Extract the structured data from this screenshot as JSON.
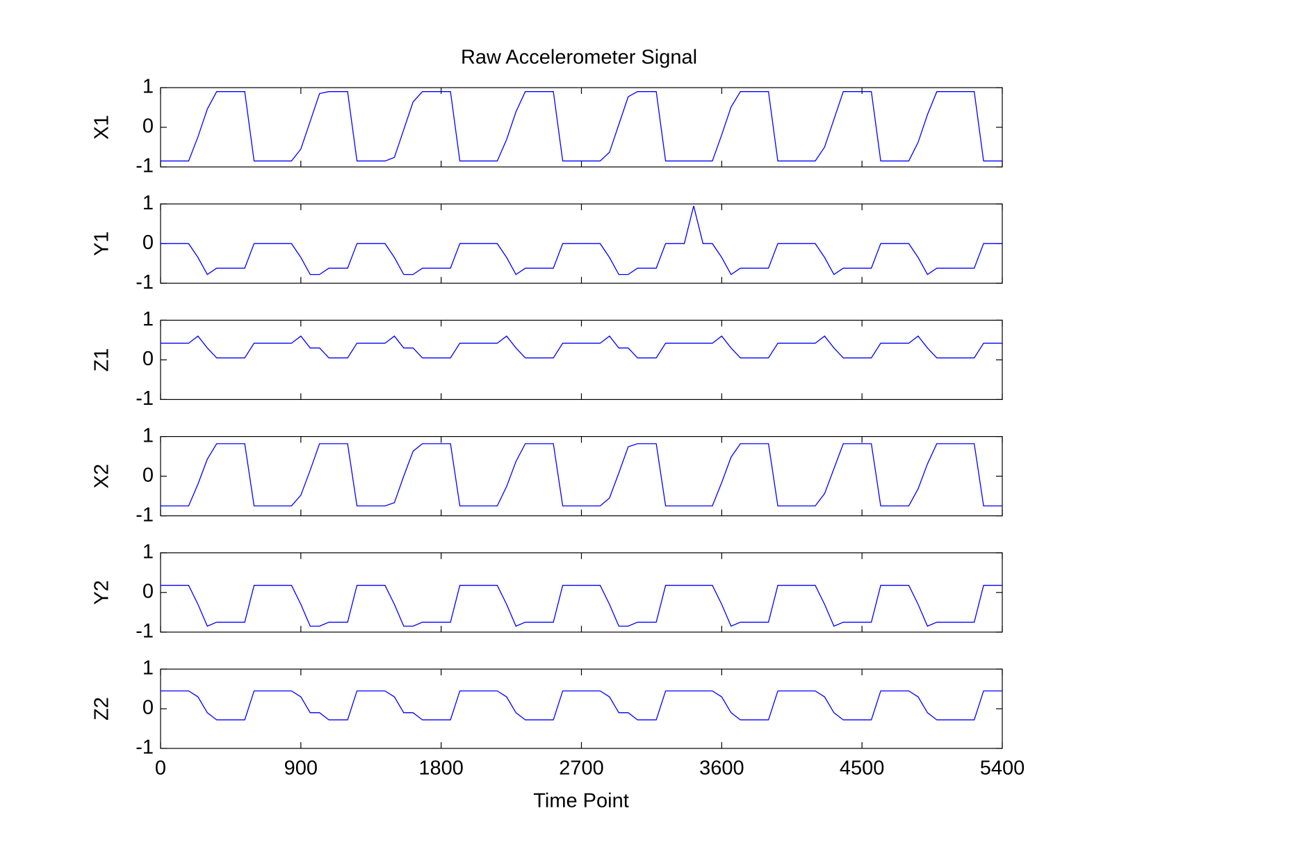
{
  "chart_data": {
    "type": "line",
    "title": "Raw Accelerometer Signal",
    "x_label": "Time Point",
    "x": [
      0,
      60,
      120,
      180,
      240,
      300,
      360,
      420,
      480,
      540,
      600,
      660,
      720,
      780,
      840,
      900,
      960,
      1020,
      1080,
      1140,
      1200,
      1260,
      1320,
      1380,
      1440,
      1500,
      1560,
      1620,
      1680,
      1740,
      1800,
      1860,
      1920,
      1980,
      2040,
      2100,
      2160,
      2220,
      2280,
      2340,
      2400,
      2460,
      2520,
      2580,
      2640,
      2700,
      2760,
      2820,
      2880,
      2940,
      3000,
      3060,
      3120,
      3180,
      3240,
      3300,
      3360,
      3420,
      3480,
      3540,
      3600,
      3660,
      3720,
      3780,
      3840,
      3900,
      3960,
      4020,
      4080,
      4140,
      4200,
      4260,
      4320,
      4380,
      4440,
      4500,
      4560,
      4620,
      4680,
      4740,
      4800,
      4860,
      4920,
      4980,
      5040,
      5100,
      5160,
      5220,
      5280,
      5340,
      5400
    ],
    "xlim": [
      0,
      5400
    ],
    "xticks": [
      0,
      900,
      1800,
      2700,
      3600,
      4500,
      5400
    ],
    "ylim": [
      -1,
      1
    ],
    "yticks": [
      -1,
      0,
      1
    ],
    "series": [
      {
        "name": "X1",
        "color": "#0000ff",
        "values": [
          -0.85,
          -0.85,
          -0.85,
          -0.85,
          -0.24,
          0.46,
          0.9,
          0.9,
          0.9,
          0.9,
          -0.85,
          -0.85,
          -0.85,
          -0.85,
          -0.85,
          -0.55,
          0.15,
          0.85,
          0.9,
          0.9,
          0.9,
          -0.85,
          -0.85,
          -0.85,
          -0.85,
          -0.76,
          -0.06,
          0.64,
          0.9,
          0.9,
          0.9,
          0.9,
          -0.85,
          -0.85,
          -0.85,
          -0.85,
          -0.85,
          -0.31,
          0.39,
          0.9,
          0.9,
          0.9,
          0.9,
          -0.85,
          -0.85,
          -0.85,
          -0.85,
          -0.85,
          -0.63,
          0.07,
          0.77,
          0.9,
          0.9,
          0.9,
          -0.85,
          -0.85,
          -0.85,
          -0.85,
          -0.85,
          -0.85,
          -0.19,
          0.51,
          0.9,
          0.9,
          0.9,
          0.9,
          -0.85,
          -0.85,
          -0.85,
          -0.85,
          -0.85,
          -0.5,
          0.2,
          0.9,
          0.9,
          0.9,
          0.9,
          -0.85,
          -0.85,
          -0.85,
          -0.85,
          -0.38,
          0.32,
          0.9,
          0.9,
          0.9,
          0.9,
          0.9,
          -0.85,
          -0.85,
          -0.85
        ]
      },
      {
        "name": "Y1",
        "color": "#0000ff",
        "values": [
          0,
          0,
          0,
          0,
          -0.35,
          -0.78,
          -0.62,
          -0.62,
          -0.62,
          -0.62,
          0,
          0,
          0,
          0,
          0,
          -0.35,
          -0.78,
          -0.78,
          -0.62,
          -0.62,
          -0.62,
          0,
          0,
          0,
          0,
          -0.35,
          -0.78,
          -0.78,
          -0.62,
          -0.62,
          -0.62,
          -0.62,
          0,
          0,
          0,
          0,
          0,
          -0.35,
          -0.78,
          -0.62,
          -0.62,
          -0.62,
          -0.62,
          0,
          0,
          0,
          0,
          0,
          -0.35,
          -0.78,
          -0.78,
          -0.62,
          -0.62,
          -0.62,
          0,
          0,
          0,
          0.95,
          0,
          0,
          -0.35,
          -0.78,
          -0.62,
          -0.62,
          -0.62,
          -0.62,
          0,
          0,
          0,
          0,
          0,
          -0.35,
          -0.78,
          -0.62,
          -0.62,
          -0.62,
          -0.62,
          0,
          0,
          0,
          0,
          -0.35,
          -0.78,
          -0.62,
          -0.62,
          -0.62,
          -0.62,
          -0.62,
          0,
          0,
          0
        ]
      },
      {
        "name": "Z1",
        "color": "#0000ff",
        "values": [
          0.42,
          0.42,
          0.42,
          0.42,
          0.6,
          0.3,
          0.05,
          0.05,
          0.05,
          0.05,
          0.42,
          0.42,
          0.42,
          0.42,
          0.42,
          0.6,
          0.3,
          0.3,
          0.05,
          0.05,
          0.05,
          0.42,
          0.42,
          0.42,
          0.42,
          0.6,
          0.3,
          0.3,
          0.05,
          0.05,
          0.05,
          0.05,
          0.42,
          0.42,
          0.42,
          0.42,
          0.42,
          0.6,
          0.3,
          0.05,
          0.05,
          0.05,
          0.05,
          0.42,
          0.42,
          0.42,
          0.42,
          0.42,
          0.6,
          0.3,
          0.3,
          0.05,
          0.05,
          0.05,
          0.42,
          0.42,
          0.42,
          0.42,
          0.42,
          0.42,
          0.6,
          0.3,
          0.05,
          0.05,
          0.05,
          0.05,
          0.42,
          0.42,
          0.42,
          0.42,
          0.42,
          0.6,
          0.3,
          0.05,
          0.05,
          0.05,
          0.05,
          0.42,
          0.42,
          0.42,
          0.42,
          0.6,
          0.3,
          0.05,
          0.05,
          0.05,
          0.05,
          0.05,
          0.42,
          0.42,
          0.42
        ]
      },
      {
        "name": "X2",
        "color": "#0000ff",
        "values": [
          -0.75,
          -0.75,
          -0.75,
          -0.75,
          -0.2,
          0.43,
          0.82,
          0.82,
          0.82,
          0.82,
          -0.75,
          -0.75,
          -0.75,
          -0.75,
          -0.75,
          -0.48,
          0.15,
          0.82,
          0.82,
          0.82,
          0.82,
          -0.75,
          -0.75,
          -0.75,
          -0.75,
          -0.67,
          0,
          0.63,
          0.82,
          0.82,
          0.82,
          0.82,
          -0.75,
          -0.75,
          -0.75,
          -0.75,
          -0.75,
          -0.26,
          0.37,
          0.82,
          0.82,
          0.82,
          0.82,
          -0.75,
          -0.75,
          -0.75,
          -0.75,
          -0.75,
          -0.55,
          0.08,
          0.74,
          0.82,
          0.82,
          0.82,
          -0.75,
          -0.75,
          -0.75,
          -0.75,
          -0.75,
          -0.75,
          -0.16,
          0.48,
          0.82,
          0.82,
          0.82,
          0.82,
          -0.75,
          -0.75,
          -0.75,
          -0.75,
          -0.75,
          -0.44,
          0.19,
          0.82,
          0.82,
          0.82,
          0.82,
          -0.75,
          -0.75,
          -0.75,
          -0.75,
          -0.32,
          0.31,
          0.82,
          0.82,
          0.82,
          0.82,
          0.82,
          -0.75,
          -0.75,
          -0.75
        ]
      },
      {
        "name": "Y2",
        "color": "#0000ff",
        "values": [
          0.18,
          0.18,
          0.18,
          0.18,
          -0.3,
          -0.85,
          -0.75,
          -0.75,
          -0.75,
          -0.75,
          0.18,
          0.18,
          0.18,
          0.18,
          0.18,
          -0.3,
          -0.85,
          -0.85,
          -0.75,
          -0.75,
          -0.75,
          0.18,
          0.18,
          0.18,
          0.18,
          -0.3,
          -0.85,
          -0.85,
          -0.75,
          -0.75,
          -0.75,
          -0.75,
          0.18,
          0.18,
          0.18,
          0.18,
          0.18,
          -0.3,
          -0.85,
          -0.75,
          -0.75,
          -0.75,
          -0.75,
          0.18,
          0.18,
          0.18,
          0.18,
          0.18,
          -0.3,
          -0.85,
          -0.85,
          -0.75,
          -0.75,
          -0.75,
          0.18,
          0.18,
          0.18,
          0.18,
          0.18,
          0.18,
          -0.3,
          -0.85,
          -0.75,
          -0.75,
          -0.75,
          -0.75,
          0.18,
          0.18,
          0.18,
          0.18,
          0.18,
          -0.3,
          -0.85,
          -0.75,
          -0.75,
          -0.75,
          -0.75,
          0.18,
          0.18,
          0.18,
          0.18,
          -0.3,
          -0.85,
          -0.75,
          -0.75,
          -0.75,
          -0.75,
          -0.75,
          0.18,
          0.18,
          0.18
        ]
      },
      {
        "name": "Z2",
        "color": "#0000ff",
        "values": [
          0.45,
          0.45,
          0.45,
          0.45,
          0.3,
          -0.1,
          -0.28,
          -0.28,
          -0.28,
          -0.28,
          0.45,
          0.45,
          0.45,
          0.45,
          0.45,
          0.3,
          -0.1,
          -0.1,
          -0.28,
          -0.28,
          -0.28,
          0.45,
          0.45,
          0.45,
          0.45,
          0.3,
          -0.1,
          -0.1,
          -0.28,
          -0.28,
          -0.28,
          -0.28,
          0.45,
          0.45,
          0.45,
          0.45,
          0.45,
          0.3,
          -0.1,
          -0.28,
          -0.28,
          -0.28,
          -0.28,
          0.45,
          0.45,
          0.45,
          0.45,
          0.45,
          0.3,
          -0.1,
          -0.1,
          -0.28,
          -0.28,
          -0.28,
          0.45,
          0.45,
          0.45,
          0.45,
          0.45,
          0.45,
          0.3,
          -0.1,
          -0.28,
          -0.28,
          -0.28,
          -0.28,
          0.45,
          0.45,
          0.45,
          0.45,
          0.45,
          0.3,
          -0.1,
          -0.28,
          -0.28,
          -0.28,
          -0.28,
          0.45,
          0.45,
          0.45,
          0.45,
          0.3,
          -0.1,
          -0.28,
          -0.28,
          -0.28,
          -0.28,
          -0.28,
          0.45,
          0.45,
          0.45
        ]
      }
    ]
  }
}
